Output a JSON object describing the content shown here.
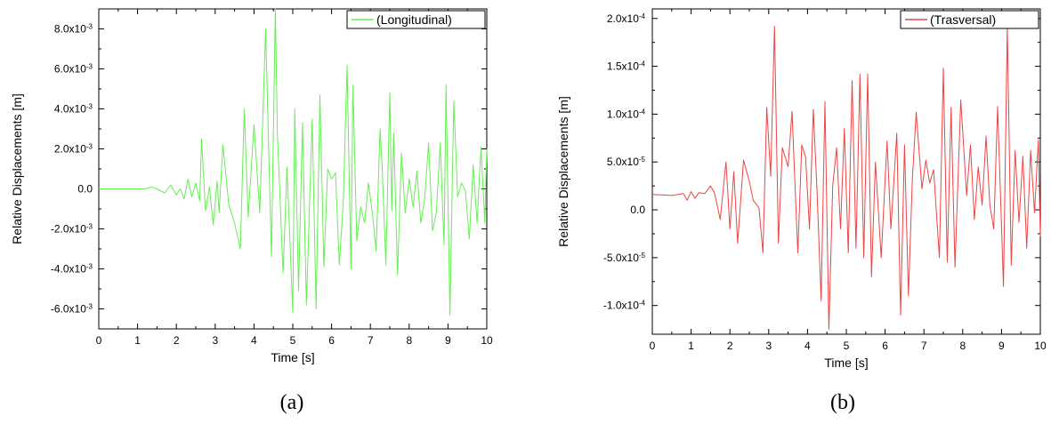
{
  "chart_data": [
    {
      "type": "line",
      "panel_label": "(a)",
      "xlabel": "Time [s]",
      "ylabel": "Relative Displacements [m]",
      "xlim": [
        0,
        10
      ],
      "ylim": [
        -0.007,
        0.009
      ],
      "x_ticks": [
        0,
        1,
        2,
        3,
        4,
        5,
        6,
        7,
        8,
        9,
        10
      ],
      "y_ticks": [
        -0.006,
        -0.004,
        -0.002,
        0,
        0.002,
        0.004,
        0.006,
        0.008
      ],
      "y_tick_labels": [
        "-6.0x10-3",
        "-4.0x10-3",
        "-2.0x10-3",
        "0.0",
        "2.0x10-3",
        "4.0x10-3",
        "6.0x10-3",
        "8.0x10-3"
      ],
      "legend": "top-right",
      "series": [
        {
          "name": "(Longitudinal)",
          "color": "#66ee55",
          "x": [
            0,
            0.5,
            1,
            1.2,
            1.35,
            1.5,
            1.7,
            1.85,
            2,
            2.1,
            2.2,
            2.3,
            2.4,
            2.5,
            2.6,
            2.65,
            2.75,
            2.85,
            2.95,
            3.05,
            3.1,
            3.2,
            3.35,
            3.5,
            3.65,
            3.75,
            3.85,
            4.0,
            4.15,
            4.3,
            4.45,
            4.55,
            4.6,
            4.75,
            4.85,
            5.0,
            5.05,
            5.15,
            5.25,
            5.35,
            5.5,
            5.6,
            5.7,
            5.8,
            5.9,
            6.0,
            6.1,
            6.2,
            6.3,
            6.4,
            6.5,
            6.55,
            6.65,
            6.75,
            6.85,
            6.95,
            7.05,
            7.15,
            7.25,
            7.3,
            7.4,
            7.5,
            7.55,
            7.6,
            7.7,
            7.8,
            7.9,
            8.0,
            8.1,
            8.2,
            8.3,
            8.4,
            8.5,
            8.6,
            8.7,
            8.8,
            8.9,
            8.95,
            9.05,
            9.15,
            9.25,
            9.35,
            9.45,
            9.55,
            9.65,
            9.75,
            9.85,
            9.95,
            10.0
          ],
          "y": [
            0,
            0,
            0,
            0,
            0.0001,
            0,
            -0.0002,
            0.0002,
            -0.0003,
            0,
            -0.0005,
            0.0005,
            -0.0004,
            0.0003,
            -0.0006,
            0.0025,
            -0.0011,
            0.0001,
            -0.0018,
            0.0004,
            -0.0012,
            0.0022,
            -0.0008,
            -0.0017,
            -0.003,
            0.004,
            -0.0014,
            0.0032,
            -0.0012,
            0.008,
            -0.0034,
            0.009,
            0.0029,
            -0.0042,
            0.0011,
            -0.0062,
            0.004,
            -0.0051,
            0.0033,
            -0.0058,
            0.0035,
            -0.006,
            0.0047,
            -0.0039,
            0.001,
            0.0005,
            0.0008,
            -0.0038,
            -0.0007,
            0.0062,
            -0.004,
            0.0052,
            -0.0026,
            -0.0009,
            -0.0017,
            0.0003,
            -0.0012,
            -0.0031,
            0.003,
            0.0012,
            -0.0038,
            0.0048,
            -0.0011,
            0.0028,
            -0.0043,
            0.0018,
            -0.0012,
            0.0005,
            -0.0009,
            0.0009,
            -0.0017,
            -0.0005,
            0.0023,
            -0.0021,
            -0.0012,
            0.0023,
            -0.0028,
            0.0052,
            -0.0063,
            0.0044,
            -0.0004,
            0.0003,
            -0.0001,
            -0.0025,
            0.0012,
            -0.0017,
            0.0021,
            -0.0017,
            0.002
          ]
        }
      ]
    },
    {
      "type": "line",
      "panel_label": "(b)",
      "xlabel": "Time [s]",
      "ylabel": "Relative Displacements [m]",
      "xlim": [
        0,
        10
      ],
      "ylim": [
        -0.00013,
        0.00021
      ],
      "x_ticks": [
        0,
        1,
        2,
        3,
        4,
        5,
        6,
        7,
        8,
        9,
        10
      ],
      "y_ticks": [
        -0.0001,
        -5e-05,
        0,
        5e-05,
        0.0001,
        0.00015,
        0.0002
      ],
      "y_tick_labels": [
        "-1.0x10-4",
        "-5.0x10-5",
        "0.0",
        "5.0x10-5",
        "1.0x10-4",
        "1.5x10-4",
        "2.0x10-4"
      ],
      "legend": "top-right",
      "series": [
        {
          "name": "(Trasversal)",
          "color": "#ee4444",
          "x": [
            0,
            0.5,
            0.8,
            0.9,
            1.0,
            1.1,
            1.2,
            1.35,
            1.5,
            1.6,
            1.75,
            1.9,
            2.0,
            2.1,
            2.2,
            2.35,
            2.5,
            2.6,
            2.75,
            2.85,
            2.95,
            3.05,
            3.15,
            3.25,
            3.35,
            3.5,
            3.6,
            3.75,
            3.85,
            3.95,
            4.05,
            4.15,
            4.25,
            4.35,
            4.45,
            4.55,
            4.65,
            4.75,
            4.85,
            4.95,
            5.05,
            5.15,
            5.25,
            5.35,
            5.45,
            5.55,
            5.65,
            5.75,
            5.9,
            6.05,
            6.15,
            6.3,
            6.4,
            6.5,
            6.6,
            6.7,
            6.8,
            6.95,
            7.05,
            7.15,
            7.25,
            7.4,
            7.5,
            7.6,
            7.7,
            7.8,
            7.95,
            8.1,
            8.2,
            8.3,
            8.4,
            8.5,
            8.6,
            8.7,
            8.8,
            8.9,
            9.05,
            9.15,
            9.25,
            9.35,
            9.45,
            9.55,
            9.65,
            9.75,
            9.85,
            9.95,
            10.0
          ],
          "y": [
            1.6e-05,
            1.5e-05,
            1.7e-05,
            1e-05,
            1.9e-05,
            1.2e-05,
            1.8e-05,
            1.7e-05,
            2.5e-05,
            1.8e-05,
            -1e-05,
            5e-05,
            -2e-05,
            4e-05,
            -3.5e-05,
            5.2e-05,
            3e-05,
            1e-05,
            2e-06,
            -4.5e-05,
            0.000107,
            3.5e-05,
            0.000192,
            -3.5e-05,
            6.5e-05,
            4.5e-05,
            0.000103,
            -4.5e-05,
            6.8e-05,
            5.5e-05,
            -2e-05,
            0.000105,
            1.5e-05,
            -9.5e-05,
            0.000113,
            -0.000125,
            2.5e-05,
            6.5e-05,
            -2e-05,
            8.5e-05,
            -4.5e-05,
            0.000135,
            -4e-05,
            0.000142,
            -5e-05,
            0.000142,
            -7e-05,
            5e-05,
            -5e-05,
            7.2e-05,
            -2e-05,
            8e-05,
            -0.00011,
            6.8e-05,
            -9e-05,
            3e-05,
            0.000102,
            2.2e-05,
            5.2e-05,
            2.8e-05,
            4.2e-05,
            -5e-05,
            0.000148,
            -5.5e-05,
            0.000107,
            -6e-05,
            0.000115,
            1.5e-05,
            6.8e-05,
            -1e-05,
            4.5e-05,
            5e-06,
            7.7e-05,
            5e-06,
            -2e-05,
            0.000108,
            -8e-05,
            0.000192,
            -5.8e-05,
            6.2e-05,
            -1.3e-05,
            5.6e-05,
            -4e-05,
            6.2e-05,
            -3e-06,
            7.3e-05,
            -2.8e-05
          ]
        }
      ]
    }
  ]
}
